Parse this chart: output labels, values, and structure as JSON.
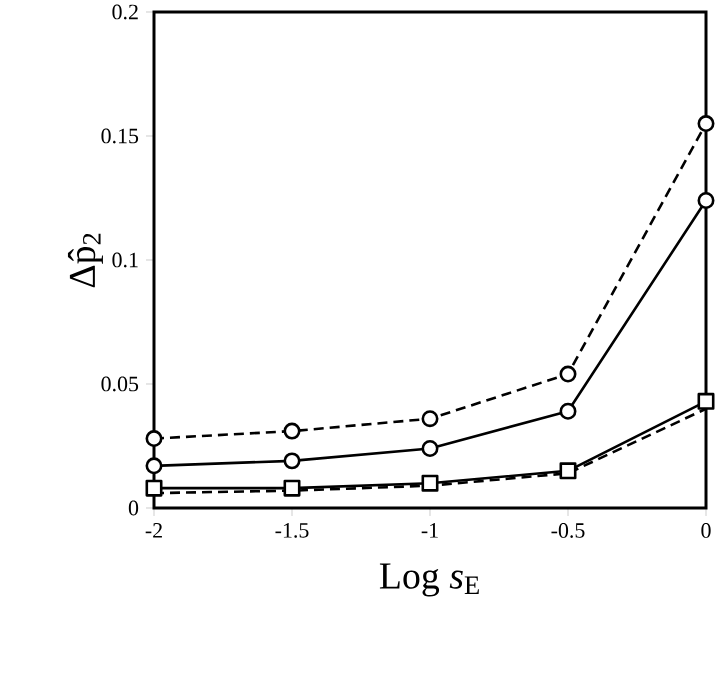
{
  "chart_data": {
    "type": "line",
    "xlabel": "Log *s*$_{E}$",
    "ylabel": "Δp̂$_{2}$",
    "x": [
      -2,
      -1.5,
      -1,
      -0.5,
      0
    ],
    "series": [
      {
        "color": "#000000",
        "line_style": "dashed",
        "marker": "circle",
        "values": [
          0.028,
          0.031,
          0.036,
          0.054,
          0.155
        ]
      },
      {
        "color": "#000000",
        "line_style": "solid",
        "marker": "circle",
        "values": [
          0.017,
          0.019,
          0.024,
          0.039,
          0.124
        ]
      },
      {
        "color": "#000000",
        "line_style": "solid",
        "marker": "square",
        "values": [
          0.008,
          0.008,
          0.01,
          0.015,
          0.043
        ]
      },
      {
        "color": "#000000",
        "line_style": "dashed",
        "marker": "none",
        "values": [
          0.006,
          0.007,
          0.009,
          0.014,
          0.04
        ]
      }
    ],
    "xlim": [
      -2,
      0
    ],
    "ylim": [
      0,
      0.2
    ],
    "xticks": [
      -2,
      -1.5,
      -1,
      -0.5,
      0
    ],
    "yticks": [
      0,
      0.05,
      0.1,
      0.15,
      0.2
    ],
    "grid": false
  }
}
